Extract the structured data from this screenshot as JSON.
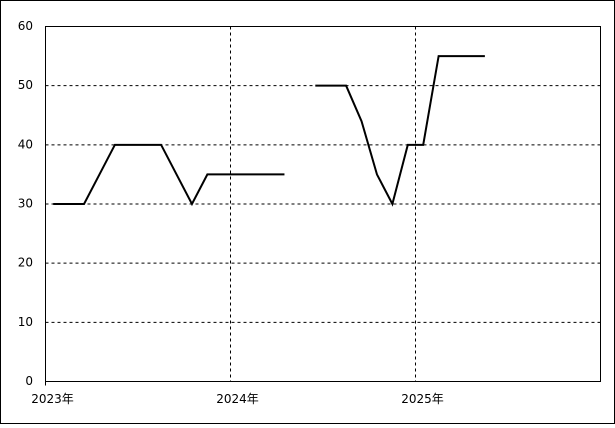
{
  "chart_data": {
    "type": "line",
    "x": [
      0.5,
      1.5,
      2.5,
      3.5,
      4.5,
      5.5,
      6.5,
      7.5,
      8.5,
      9.5,
      10.5,
      11.5,
      12.5,
      13.5,
      14.5,
      15.5,
      16.5,
      17.5,
      18.5,
      19.5,
      20.5,
      21.5,
      22.5,
      23.5,
      24.5,
      25.5,
      26.5,
      27.5,
      28.5
    ],
    "series": [
      {
        "color": "#000000",
        "values": [
          30,
          30,
          30,
          35,
          40,
          40,
          40,
          40,
          35,
          30,
          35,
          35,
          35,
          35,
          35,
          35,
          null,
          50,
          50,
          50,
          44,
          35,
          30,
          40,
          40,
          55,
          55,
          55,
          55
        ]
      }
    ],
    "xlim": [
      0,
      36
    ],
    "xticks": [
      {
        "value": 0,
        "label": "2023年"
      },
      {
        "value": 12,
        "label": "2024年"
      },
      {
        "value": 24,
        "label": "2025年"
      }
    ],
    "ylim": [
      0,
      60
    ],
    "yticks": [
      0,
      10,
      20,
      30,
      40,
      50,
      60
    ],
    "grid": true
  }
}
